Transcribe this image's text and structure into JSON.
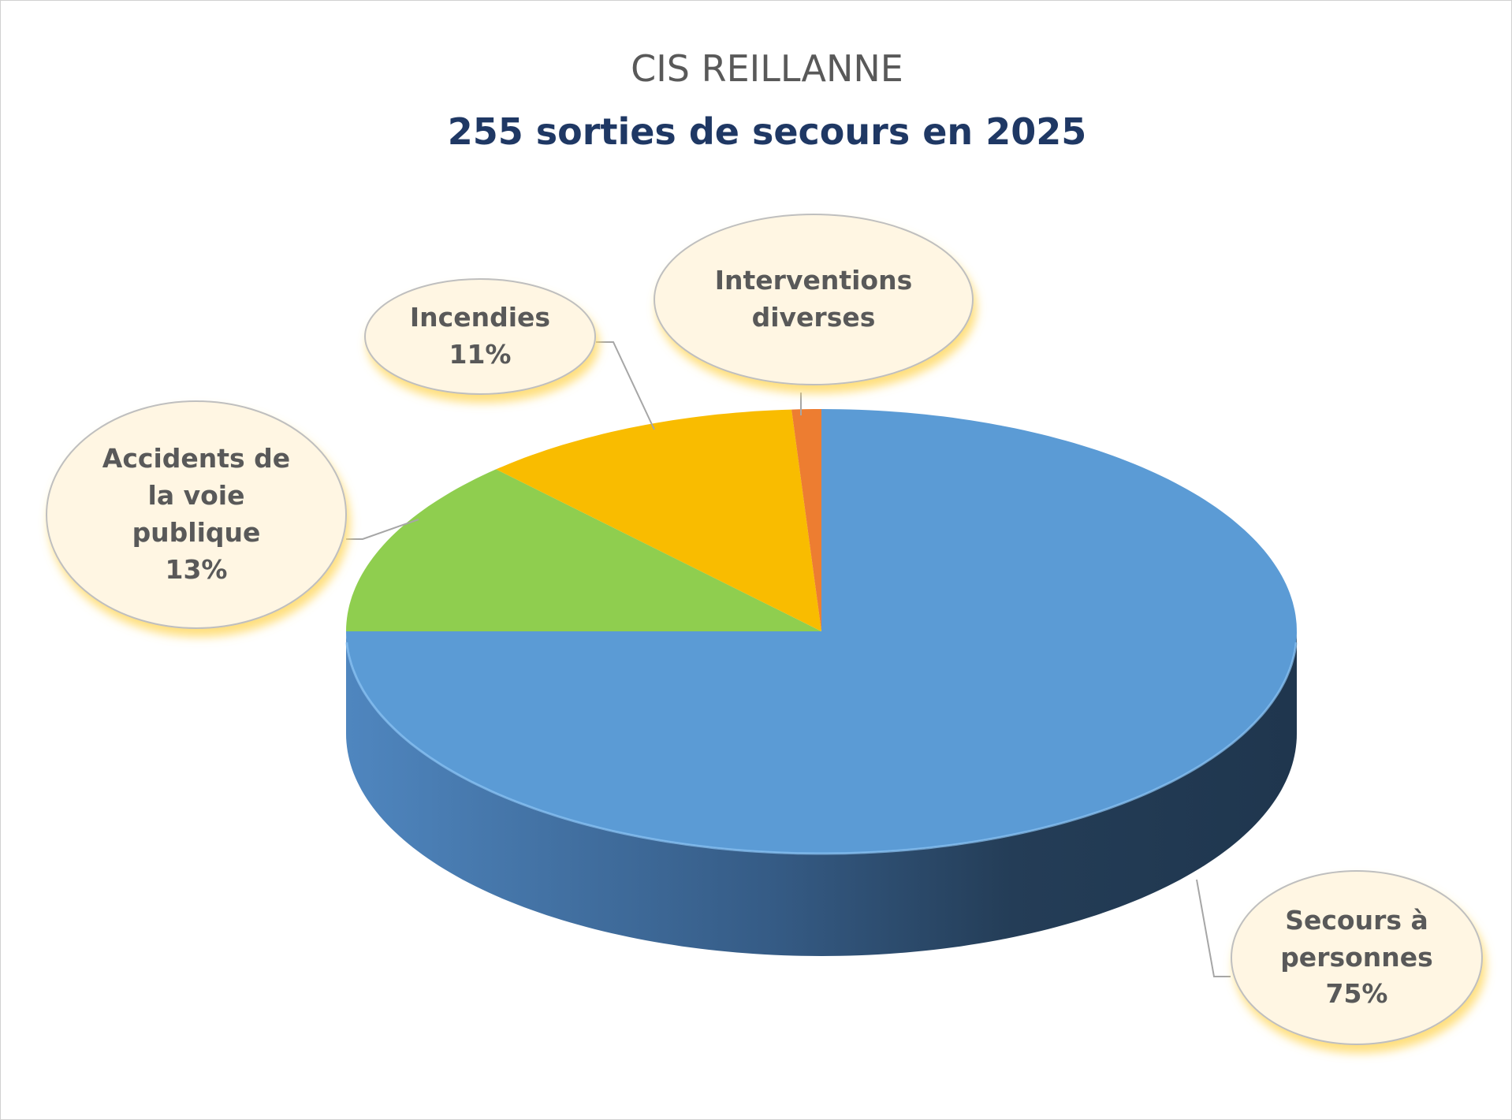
{
  "chart_data": {
    "type": "pie",
    "style": "3d",
    "title": "CIS REILLANNE",
    "subtitle": "255 sorties de secours en 2025",
    "categories": [
      "Secours à personnes",
      "Accidents de la voie publique",
      "Incendies",
      "Interventions diverses"
    ],
    "values": [
      75,
      13,
      11,
      1
    ],
    "value_labels": [
      "75%",
      "13%",
      "11%",
      null
    ],
    "colors": [
      "#5b9bd5",
      "#8fce4f",
      "#f9bc00",
      "#ed7d31"
    ]
  }
}
